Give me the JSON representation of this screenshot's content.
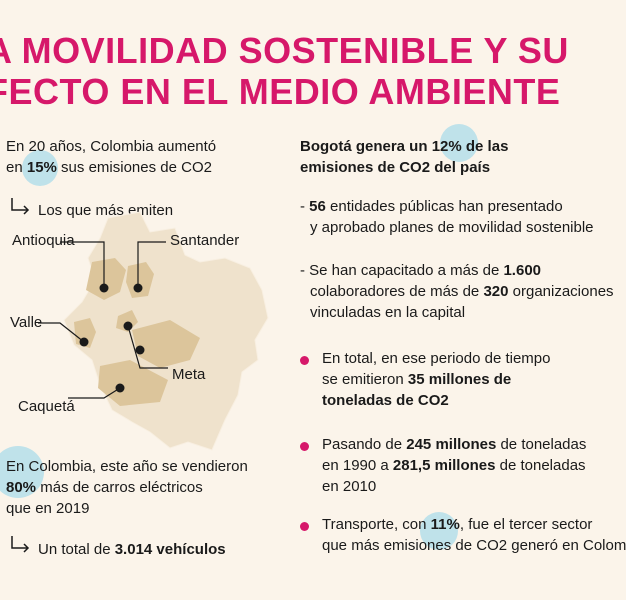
{
  "title": {
    "line1": "A MOVILIDAD SOSTENIBLE Y SU",
    "line2": "FECTO EN EL MEDIO AMBIENTE"
  },
  "left": {
    "intro": {
      "pre": "En 20 años, Colombia aumentó",
      "pre2": "en ",
      "pct": "15%",
      "post": " sus emisiones de CO2"
    },
    "sub": "Los que más emiten",
    "regions": [
      "Antioquia",
      "Santander",
      "Valle",
      "Meta",
      "Caquetá"
    ],
    "cars": {
      "l1": "En Colombia, este año se vendieron",
      "pct": "80%",
      "l2": " más de carros eléctricos",
      "l3": "que en 2019"
    },
    "total": {
      "pre": "Un total de ",
      "val": "3.014 vehículos"
    }
  },
  "right": {
    "head": {
      "pre": "Bogotá genera un ",
      "pct": "12%",
      "post": " de las",
      "l2": "emisiones de CO2 del país"
    },
    "dash1": {
      "num": "56",
      "t1": " entidades públicas han presentado",
      "t2": "y aprobado planes de movilidad sostenible"
    },
    "dash2": {
      "pre": "- Se han capacitado a más de ",
      "n1": "1.600",
      "l2pre": "colaboradores de más de ",
      "n2": "320",
      "l2post": " organizaciones",
      "l3": "vinculadas en la capital"
    },
    "b1": {
      "l1": "En total, en ese periodo de tiempo",
      "l2pre": "se emitieron ",
      "l2b": "35 millones de",
      "l3": "toneladas de CO2"
    },
    "b2": {
      "pre": "Pasando de ",
      "n1": "245 millones",
      "post": " de toneladas",
      "l2pre": "en 1990 a ",
      "n2": "281,5 millones",
      "l2post": " de toneladas",
      "l3": "en 2010"
    },
    "b3": {
      "pre": "Transporte, con ",
      "pct": "11%",
      "post": ", fue el tercer sector",
      "l2": "que más emisiones de CO2 generó en Colom"
    }
  },
  "colors": {
    "accent": "#d6186a",
    "highlight": "#bfe2ea",
    "map_base": "#efe2cc",
    "map_region": "#dcc59b",
    "background": "#fbf4ea"
  }
}
